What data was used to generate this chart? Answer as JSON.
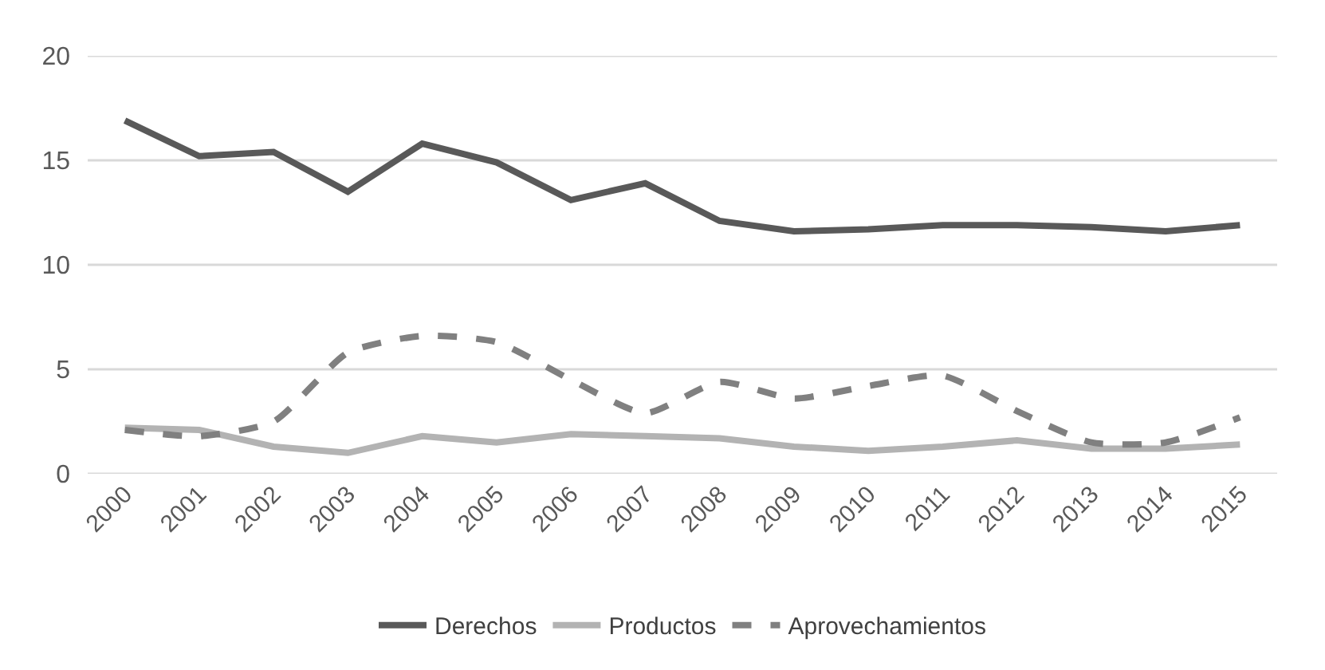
{
  "chart_data": {
    "type": "line",
    "categories": [
      "2000",
      "2001",
      "2002",
      "2003",
      "2004",
      "2005",
      "2006",
      "2007",
      "2008",
      "2009",
      "2010",
      "2011",
      "2012",
      "2013",
      "2014",
      "2015"
    ],
    "series": [
      {
        "name": "Derechos",
        "color": "#595959",
        "line_style": "solid",
        "values": [
          16.9,
          15.2,
          15.4,
          13.5,
          15.8,
          14.9,
          13.1,
          13.9,
          12.1,
          11.6,
          11.7,
          11.9,
          11.9,
          11.8,
          11.6,
          11.9
        ]
      },
      {
        "name": "Productos",
        "color": "#b3b3b3",
        "line_style": "solid",
        "values": [
          2.2,
          2.1,
          1.3,
          1.0,
          1.8,
          1.5,
          1.9,
          1.8,
          1.7,
          1.3,
          1.1,
          1.3,
          1.6,
          1.2,
          1.2,
          1.4
        ]
      },
      {
        "name": "Aprovechamientos",
        "color": "#808080",
        "line_style": "dashed",
        "values": [
          2.1,
          1.8,
          2.5,
          5.8,
          6.6,
          6.3,
          4.5,
          2.9,
          4.4,
          3.6,
          4.2,
          4.7,
          3.0,
          1.5,
          1.5,
          2.7
        ]
      }
    ],
    "ylim": [
      0,
      20
    ],
    "yticks": [
      0,
      5,
      10,
      15,
      20
    ],
    "grid": "y",
    "legend": "bottom",
    "marker": "none"
  }
}
